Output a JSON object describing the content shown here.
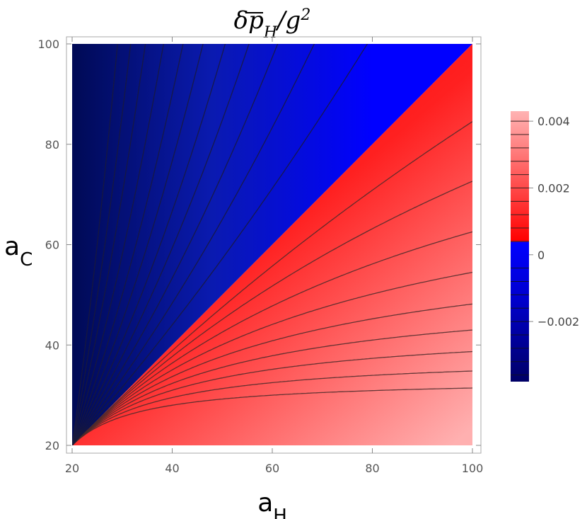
{
  "chart_data": {
    "type": "contour",
    "title": {
      "base": "δp",
      "sub": "H",
      "mid": "/g",
      "sup": "2"
    },
    "xlabel": {
      "base": "a",
      "sub": "H"
    },
    "ylabel": {
      "base": "a",
      "sub": "C"
    },
    "xlim": [
      20,
      100
    ],
    "ylim": [
      20,
      100
    ],
    "xticks": [
      20,
      40,
      60,
      80,
      100
    ],
    "yticks": [
      20,
      40,
      60,
      80,
      100
    ],
    "zero_contour": "a_C = a_H",
    "regions": [
      {
        "name": "a_C > a_H",
        "sign": "negative",
        "color": "#0000ff"
      },
      {
        "name": "a_C < a_H",
        "sign": "positive",
        "color": "#ff0000"
      }
    ],
    "colorbar": {
      "range": [
        -0.0038,
        0.0043
      ],
      "ticks": [
        {
          "value": 0.004,
          "label": "0.004"
        },
        {
          "value": 0.002,
          "label": "0.002"
        },
        {
          "value": 0,
          "label": "0"
        },
        {
          "value": -0.002,
          "label": "−0.002"
        }
      ],
      "colors": {
        "max": "#ffb3b3",
        "zero_positive": "#ff0000",
        "zero_negative": "#0000ff",
        "min": "#000066"
      }
    }
  }
}
